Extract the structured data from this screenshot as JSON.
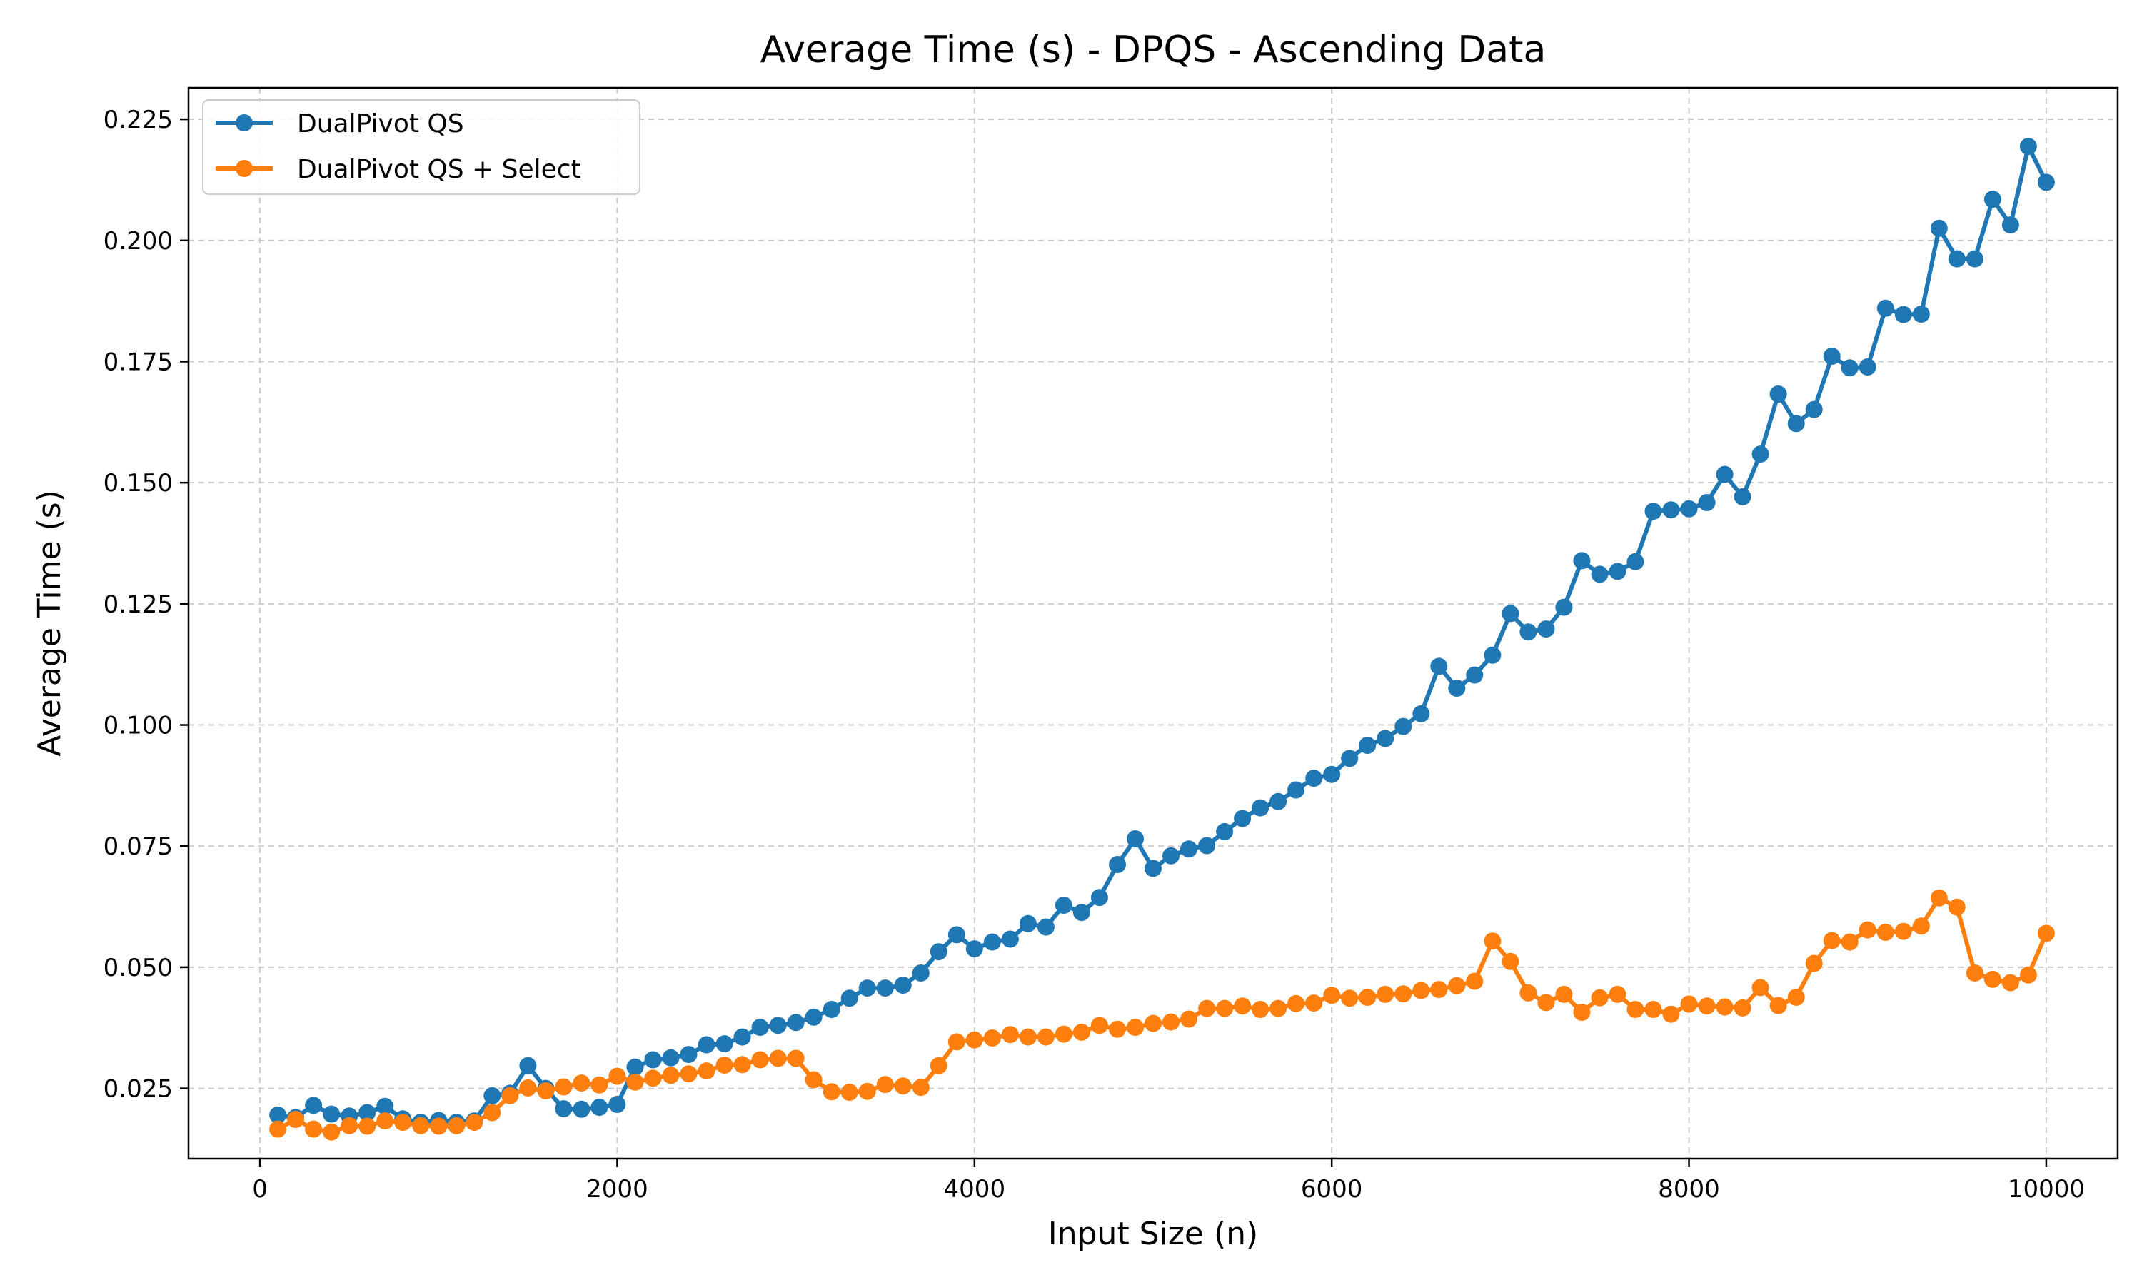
{
  "chart_data": {
    "type": "line",
    "title": "Average Time (s) - DPQS - Ascending Data",
    "xlabel": "Input Size (n)",
    "ylabel": "Average Time (s)",
    "xlim": [
      -400,
      10400
    ],
    "ylim": [
      0.0105,
      0.2315
    ],
    "xticks": [
      0,
      2000,
      4000,
      6000,
      8000,
      10000
    ],
    "xtick_labels": [
      "0",
      "2000",
      "4000",
      "6000",
      "8000",
      "10000"
    ],
    "yticks": [
      0.025,
      0.05,
      0.075,
      0.1,
      0.125,
      0.15,
      0.175,
      0.2,
      0.225
    ],
    "ytick_labels": [
      "0.025",
      "0.050",
      "0.075",
      "0.100",
      "0.125",
      "0.150",
      "0.175",
      "0.200",
      "0.225"
    ],
    "grid": true,
    "legend_position": "top-left",
    "x": [
      100,
      200,
      300,
      400,
      500,
      600,
      700,
      800,
      900,
      1000,
      1100,
      1200,
      1300,
      1400,
      1500,
      1600,
      1700,
      1800,
      1900,
      2000,
      2100,
      2200,
      2300,
      2400,
      2500,
      2600,
      2700,
      2800,
      2900,
      3000,
      3100,
      3200,
      3300,
      3400,
      3500,
      3600,
      3700,
      3800,
      3900,
      4000,
      4100,
      4200,
      4300,
      4400,
      4500,
      4600,
      4700,
      4800,
      4900,
      5000,
      5100,
      5200,
      5300,
      5400,
      5500,
      5600,
      5700,
      5800,
      5900,
      6000,
      6100,
      6200,
      6300,
      6400,
      6500,
      6600,
      6700,
      6800,
      6900,
      7000,
      7100,
      7200,
      7300,
      7400,
      7500,
      7600,
      7700,
      7800,
      7900,
      8000,
      8100,
      8200,
      8300,
      8400,
      8500,
      8600,
      8700,
      8800,
      8900,
      9000,
      9100,
      9200,
      9300,
      9400,
      9500,
      9600,
      9700,
      9800,
      9900,
      10000
    ],
    "series": [
      {
        "name": "DualPivot QS",
        "color": "#1f77b4",
        "values": [
          0.0195,
          0.019,
          0.0215,
          0.0197,
          0.0193,
          0.02,
          0.0213,
          0.0187,
          0.018,
          0.0184,
          0.018,
          0.0183,
          0.0235,
          0.024,
          0.0297,
          0.025,
          0.0208,
          0.0207,
          0.0211,
          0.0217,
          0.0294,
          0.0309,
          0.0313,
          0.032,
          0.034,
          0.0342,
          0.0356,
          0.0376,
          0.038,
          0.0386,
          0.0397,
          0.0413,
          0.0436,
          0.0457,
          0.0457,
          0.0463,
          0.0488,
          0.0532,
          0.0567,
          0.0538,
          0.0552,
          0.0558,
          0.059,
          0.0583,
          0.0628,
          0.0613,
          0.0644,
          0.0712,
          0.0765,
          0.0704,
          0.073,
          0.0744,
          0.0751,
          0.078,
          0.0807,
          0.0829,
          0.0842,
          0.0866,
          0.089,
          0.0898,
          0.0931,
          0.0958,
          0.0972,
          0.0997,
          0.1023,
          0.1121,
          0.1076,
          0.1103,
          0.1144,
          0.123,
          0.1192,
          0.1198,
          0.1243,
          0.1339,
          0.1311,
          0.1317,
          0.1337,
          0.1441,
          0.1444,
          0.1446,
          0.1459,
          0.1517,
          0.1471,
          0.1559,
          0.1683,
          0.1622,
          0.1651,
          0.1761,
          0.1737,
          0.1739,
          0.186,
          0.1847,
          0.1848,
          0.2025,
          0.1962,
          0.1962,
          0.2085,
          0.2032,
          0.2194,
          0.212
        ]
      },
      {
        "name": "DualPivot QS + Select",
        "color": "#ff7f0e",
        "values": [
          0.0166,
          0.0186,
          0.0166,
          0.016,
          0.0173,
          0.0172,
          0.0183,
          0.018,
          0.0173,
          0.0172,
          0.0173,
          0.018,
          0.02,
          0.0235,
          0.0251,
          0.0245,
          0.0253,
          0.0261,
          0.0257,
          0.0275,
          0.0263,
          0.0271,
          0.0277,
          0.028,
          0.0286,
          0.0298,
          0.0299,
          0.0309,
          0.0312,
          0.0312,
          0.0268,
          0.0243,
          0.0242,
          0.0244,
          0.0258,
          0.0255,
          0.0252,
          0.0297,
          0.0346,
          0.035,
          0.0354,
          0.0361,
          0.0356,
          0.0356,
          0.0362,
          0.0366,
          0.038,
          0.0372,
          0.0376,
          0.0384,
          0.0387,
          0.0393,
          0.0415,
          0.0415,
          0.042,
          0.0413,
          0.0415,
          0.0425,
          0.0426,
          0.0442,
          0.0436,
          0.0438,
          0.0444,
          0.0445,
          0.0452,
          0.0454,
          0.0462,
          0.0471,
          0.0554,
          0.0512,
          0.0447,
          0.0427,
          0.0444,
          0.0407,
          0.0437,
          0.0444,
          0.0413,
          0.0413,
          0.0403,
          0.0424,
          0.042,
          0.0418,
          0.0416,
          0.0458,
          0.0421,
          0.0438,
          0.0508,
          0.0555,
          0.0552,
          0.0577,
          0.0572,
          0.0574,
          0.0585,
          0.0643,
          0.0624,
          0.0488,
          0.0475,
          0.0468,
          0.0484,
          0.057
        ]
      }
    ]
  }
}
